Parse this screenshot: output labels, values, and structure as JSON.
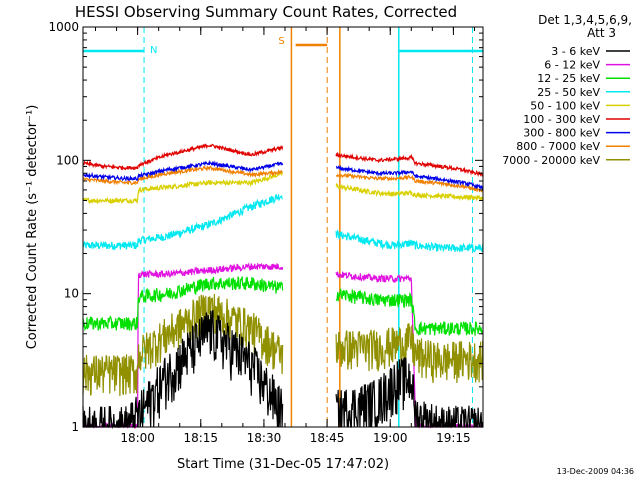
{
  "chart_data": {
    "type": "line",
    "title": "HESSI Observing Summary Count Rates, Corrected",
    "xlabel": "Start Time (31-Dec-05 17:47:02)",
    "ylabel": "Corrected Count Rate (s⁻¹ detector⁻¹)",
    "yscale": "log",
    "ylim": [
      1,
      1000
    ],
    "xlim_minutes_after_start": [
      0,
      95
    ],
    "x_unit": "minutes after 17:47:02",
    "x_ticks": [
      {
        "label": "18:00",
        "value": 12.97
      },
      {
        "label": "18:15",
        "value": 27.97
      },
      {
        "label": "18:30",
        "value": 42.97
      },
      {
        "label": "18:45",
        "value": 57.97
      },
      {
        "label": "19:00",
        "value": 72.97
      },
      {
        "label": "19:15",
        "value": 87.97
      }
    ],
    "y_ticks": [
      {
        "label": "1",
        "value": 1
      },
      {
        "label": "10",
        "value": 10
      },
      {
        "label": "100",
        "value": 100
      },
      {
        "label": "1000",
        "value": 1000
      }
    ],
    "legend": {
      "header_line1": "Det 1,3,4,5,6,9,",
      "header_line2": "Att 3",
      "placement": "right"
    },
    "x": [
      0,
      5,
      10,
      13,
      13.1,
      20,
      30,
      40,
      47.5,
      58,
      60,
      70,
      74,
      78,
      79,
      85,
      90,
      92,
      95
    ],
    "gaps": [
      [
        47.5,
        58
      ]
    ],
    "series": [
      {
        "name": "3 - 6 keV",
        "color": "#000000",
        "noise": 0.45,
        "values": [
          1.0,
          1.0,
          1.0,
          1.2,
          1.2,
          2.5,
          5.5,
          3.0,
          1.3,
          null,
          1.3,
          1.6,
          2.2,
          2.4,
          1.2,
          1.0,
          1.0,
          1.0,
          1.0
        ]
      },
      {
        "name": "6 - 12 keV",
        "color": "#e010e0",
        "noise": 0.06,
        "values": [
          1.0,
          1.0,
          1.0,
          1.0,
          14,
          14,
          15,
          16,
          16,
          null,
          14,
          13,
          13,
          13,
          1.0,
          1.0,
          1.0,
          1.0,
          1.0
        ]
      },
      {
        "name": "12 - 25 keV",
        "color": "#00e000",
        "noise": 0.12,
        "values": [
          6.0,
          6.0,
          6.0,
          6.0,
          9.5,
          10,
          12,
          12,
          11,
          null,
          10,
          9,
          9,
          9,
          5.5,
          5.5,
          5.5,
          5.5,
          5.5
        ]
      },
      {
        "name": "25 - 50 keV",
        "color": "#00e8f0",
        "noise": 0.07,
        "values": [
          23,
          23,
          23,
          23,
          25,
          27,
          33,
          45,
          55,
          null,
          28,
          24,
          23,
          24,
          23,
          22,
          22,
          22,
          22
        ]
      },
      {
        "name": "50 - 100 keV",
        "color": "#d8d000",
        "noise": 0.04,
        "values": [
          50,
          50,
          50,
          50,
          60,
          63,
          68,
          68,
          80,
          null,
          64,
          57,
          56,
          57,
          55,
          54,
          53,
          53,
          52
        ]
      },
      {
        "name": "100 - 300 keV",
        "color": "#e00000",
        "noise": 0.03,
        "values": [
          95,
          90,
          88,
          88,
          92,
          110,
          130,
          110,
          125,
          null,
          110,
          100,
          102,
          105,
          95,
          90,
          85,
          82,
          78
        ]
      },
      {
        "name": "300 - 800 keV",
        "color": "#0000e8",
        "noise": 0.03,
        "values": [
          78,
          75,
          73,
          73,
          76,
          85,
          95,
          85,
          95,
          null,
          88,
          80,
          80,
          82,
          76,
          72,
          68,
          66,
          62
        ]
      },
      {
        "name": "800 - 7000 keV",
        "color": "#f08000",
        "noise": 0.03,
        "values": [
          72,
          70,
          68,
          68,
          72,
          80,
          88,
          78,
          82,
          null,
          78,
          73,
          73,
          75,
          70,
          67,
          64,
          62,
          58
        ]
      },
      {
        "name": "7000 - 20000 keV",
        "color": "#909000",
        "noise": 0.35,
        "values": [
          2.6,
          2.6,
          2.6,
          2.6,
          3.5,
          5.0,
          8.0,
          5.5,
          3.5,
          null,
          4.0,
          4.0,
          4.2,
          4.5,
          3.5,
          3.2,
          3.3,
          3.3,
          3.3
        ]
      }
    ],
    "annotations": {
      "night_label": "N",
      "saa_label": "S",
      "cyan_bars": [
        {
          "x_start": 0,
          "x_end": 14.5
        },
        {
          "x_start": 75,
          "x_end": 95
        }
      ],
      "cyan_dashed_lines": [
        14.5,
        92.5
      ],
      "cyan_solid_lines": [
        75
      ],
      "orange_bar": {
        "x_start": 50.5,
        "x_end": 58
      },
      "orange_solid_lines": [
        49.5,
        61
      ],
      "orange_dashed_lines": [
        58
      ],
      "bar_level": 660
    },
    "timestamp": "13-Dec-2009 04:36"
  }
}
